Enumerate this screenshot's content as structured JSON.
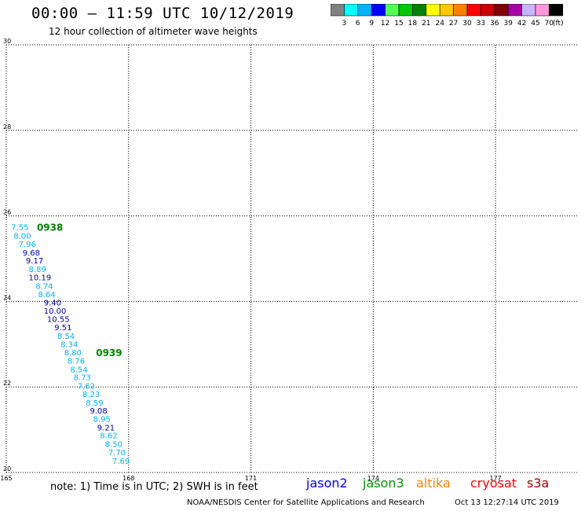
{
  "header": {
    "title": "00:00 – 11:59 UTC 10/12/2019",
    "subtitle": "12 hour collection of altimeter wave heights"
  },
  "colorbar": {
    "unit": "(ft)",
    "entries": [
      {
        "label": "3",
        "color": "#808080"
      },
      {
        "label": "6",
        "color": "#00ffff"
      },
      {
        "label": "9",
        "color": "#00b4ff"
      },
      {
        "label": "12",
        "color": "#0000ff"
      },
      {
        "label": "15",
        "color": "#55ff55"
      },
      {
        "label": "18",
        "color": "#00c800"
      },
      {
        "label": "21",
        "color": "#008200"
      },
      {
        "label": "24",
        "color": "#ffff00"
      },
      {
        "label": "27",
        "color": "#ffc800"
      },
      {
        "label": "30",
        "color": "#ff8200"
      },
      {
        "label": "33",
        "color": "#ff0000"
      },
      {
        "label": "36",
        "color": "#c80000"
      },
      {
        "label": "39",
        "color": "#820000"
      },
      {
        "label": "42",
        "color": "#aa00aa"
      },
      {
        "label": "45",
        "color": "#c8b4ff"
      },
      {
        "label": "70",
        "color": "#ff96dc"
      },
      {
        "label": "",
        "color": "#000000"
      }
    ]
  },
  "chart_data": {
    "type": "scatter",
    "title": "00:00 – 11:59 UTC 10/12/2019",
    "subtitle": "12 hour collection of altimeter wave heights",
    "xlim": [
      165,
      179
    ],
    "ylim": [
      20,
      30
    ],
    "x_ticks": [
      "165",
      "168",
      "171",
      "174",
      "177"
    ],
    "y_ticks": [
      "20",
      "22",
      "24",
      "26",
      "28",
      "30"
    ],
    "grid": true,
    "series": [
      {
        "name": "jason3",
        "points": [
          {
            "lon": 165.12,
            "lat": 25.74,
            "value": "7.55",
            "color": "#00b4ff"
          },
          {
            "lon": 165.18,
            "lat": 25.54,
            "value": "8.00",
            "color": "#00b4ff"
          },
          {
            "lon": 165.3,
            "lat": 25.35,
            "value": "7.96",
            "color": "#00b4ff"
          },
          {
            "lon": 165.4,
            "lat": 25.15,
            "value": "9.68",
            "color": "#0000aa"
          },
          {
            "lon": 165.48,
            "lat": 24.96,
            "value": "9.17",
            "color": "#0000aa"
          },
          {
            "lon": 165.55,
            "lat": 24.76,
            "value": "8.89",
            "color": "#00b4ff"
          },
          {
            "lon": 165.55,
            "lat": 24.57,
            "value": "10.19",
            "color": "#0000aa"
          },
          {
            "lon": 165.72,
            "lat": 24.37,
            "value": "8.74",
            "color": "#00b4ff"
          },
          {
            "lon": 165.78,
            "lat": 24.17,
            "value": "8.64",
            "color": "#00b4ff"
          },
          {
            "lon": 165.92,
            "lat": 23.98,
            "value": "9.40",
            "color": "#0000aa"
          },
          {
            "lon": 165.92,
            "lat": 23.79,
            "value": "10.00",
            "color": "#0000aa"
          },
          {
            "lon": 166.0,
            "lat": 23.59,
            "value": "10.55",
            "color": "#0000aa"
          },
          {
            "lon": 166.18,
            "lat": 23.4,
            "value": "9.51",
            "color": "#0000aa"
          },
          {
            "lon": 166.25,
            "lat": 23.2,
            "value": "8.54",
            "color": "#00b4ff"
          },
          {
            "lon": 166.33,
            "lat": 23.01,
            "value": "8.34",
            "color": "#00b4ff"
          },
          {
            "lon": 166.42,
            "lat": 22.81,
            "value": "8.80",
            "color": "#00b4ff"
          },
          {
            "lon": 166.5,
            "lat": 22.62,
            "value": "8.76",
            "color": "#00b4ff"
          },
          {
            "lon": 166.57,
            "lat": 22.42,
            "value": "8.54",
            "color": "#00b4ff"
          },
          {
            "lon": 166.65,
            "lat": 22.23,
            "value": "8.73",
            "color": "#00b4ff"
          },
          {
            "lon": 166.75,
            "lat": 22.03,
            "value": "7.62",
            "color": "#00b4ff"
          },
          {
            "lon": 166.87,
            "lat": 21.84,
            "value": "8.23",
            "color": "#00b4ff"
          },
          {
            "lon": 166.95,
            "lat": 21.64,
            "value": "8.59",
            "color": "#00b4ff"
          },
          {
            "lon": 167.05,
            "lat": 21.45,
            "value": "9.08",
            "color": "#0000aa"
          },
          {
            "lon": 167.13,
            "lat": 21.26,
            "value": "8.95",
            "color": "#00b4ff"
          },
          {
            "lon": 167.23,
            "lat": 21.06,
            "value": "9.21",
            "color": "#0000aa"
          },
          {
            "lon": 167.3,
            "lat": 20.87,
            "value": "8.62",
            "color": "#00b4ff"
          },
          {
            "lon": 167.42,
            "lat": 20.67,
            "value": "8.50",
            "color": "#00b4ff"
          },
          {
            "lon": 167.5,
            "lat": 20.48,
            "value": "7.70",
            "color": "#00b4ff"
          },
          {
            "lon": 167.6,
            "lat": 20.28,
            "value": "7.69",
            "color": "#00b4ff"
          }
        ]
      }
    ],
    "annotations": [
      {
        "text": "0938",
        "lon": 165.75,
        "lat": 25.74,
        "color": "#008200"
      },
      {
        "text": "0939",
        "lon": 167.2,
        "lat": 22.81,
        "color": "#008200"
      }
    ]
  },
  "note": "note:  1) Time is in UTC;  2) SWH is in feet",
  "satellites": [
    {
      "name": "jason2",
      "color": "#0000ff"
    },
    {
      "name": "jason3",
      "color": "#009600"
    },
    {
      "name": "altika",
      "color": "#ff8200"
    },
    {
      "name": "cryosat",
      "color": "#ff0000"
    },
    {
      "name": "s3a",
      "color": "#a00000"
    }
  ],
  "footer": {
    "agency": "NOAA/NESDIS Center for Satellite Applications and Research",
    "timestamp": "Oct 13 12:27:14 UTC 2019"
  }
}
